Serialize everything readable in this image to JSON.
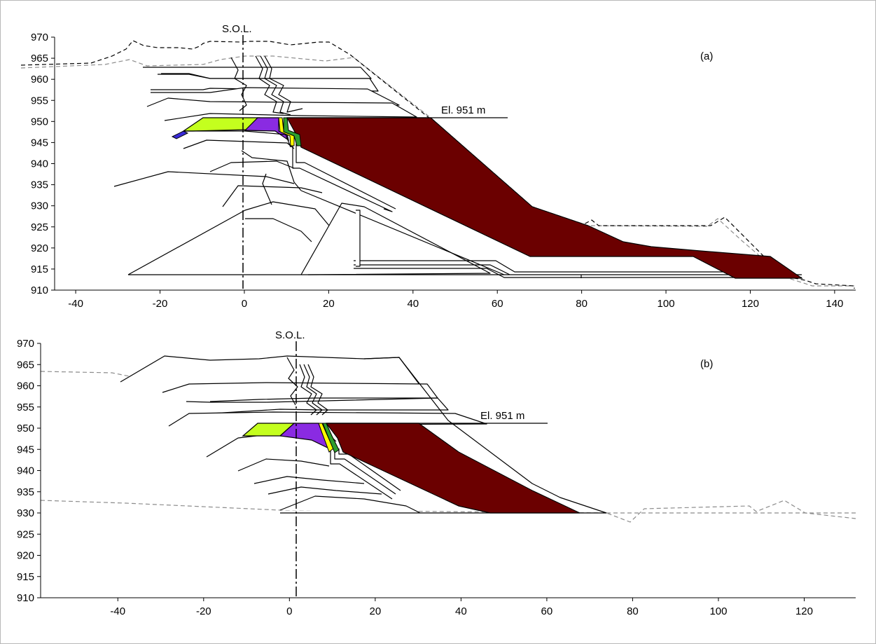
{
  "colors": {
    "core": "#6b0000",
    "filter_lime": "#c4ff1e",
    "filter_purple": "#8a2be2",
    "filter_blue": "#3a2bd8",
    "drain_yellow": "#ffff00",
    "drain_green": "#2e9e2e",
    "ground_dashed": "#8c8c8c",
    "original_dashed": "#000000"
  },
  "chart_data": [
    {
      "type": "diagram",
      "panel_label": "(a)",
      "xlim": [
        -45,
        145
      ],
      "ylim": [
        910,
        970
      ],
      "x_ticks": [
        -40,
        -20,
        0,
        20,
        40,
        60,
        80,
        100,
        120,
        140
      ],
      "y_ticks": [
        910,
        915,
        920,
        925,
        930,
        935,
        940,
        945,
        950,
        955,
        960,
        965,
        970
      ],
      "sol_label": "S.O.L.",
      "elevation_label": "El. 951 m",
      "elevation": 951,
      "sol_x": 0
    },
    {
      "type": "diagram",
      "panel_label": "(b)",
      "xlim": [
        -58,
        132
      ],
      "ylim": [
        910,
        970
      ],
      "x_ticks": [
        -40,
        -20,
        0,
        20,
        40,
        60,
        80,
        100,
        120
      ],
      "y_ticks": [
        910,
        915,
        920,
        925,
        930,
        935,
        940,
        945,
        950,
        955,
        960,
        965,
        970
      ],
      "sol_label": "S.O.L.",
      "elevation_label": "El. 951 m",
      "elevation": 951,
      "sol_x": 0
    }
  ]
}
